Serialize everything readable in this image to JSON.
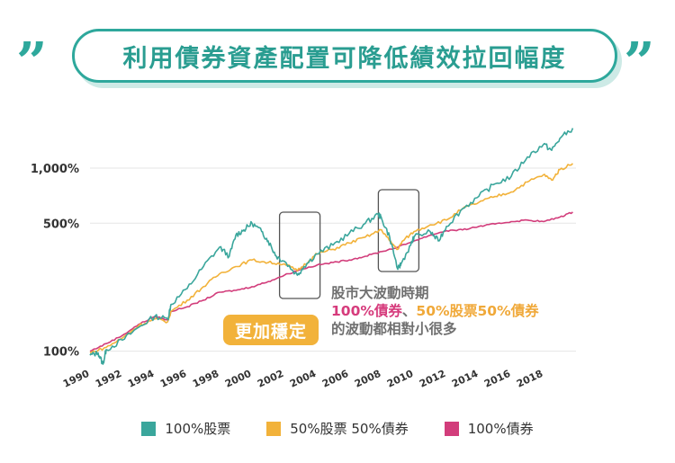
{
  "title": "利用債券資產配置可降低績效拉回幅度",
  "quote_glyph": "”",
  "annotation": {
    "badge": "更加穩定",
    "line1": "股市大波動時期",
    "line2_a": "100%債券",
    "line2_sep": "、",
    "line2_b": "50%股票50%債券",
    "line3": "的波動都相對小很多"
  },
  "colors": {
    "stock": "#3aa69c",
    "mix": "#f2b23a",
    "bond": "#d23d7b",
    "accent": "#2ea89c"
  },
  "chart_data": {
    "type": "line",
    "yscale": "log",
    "ylim": [
      90,
      1700
    ],
    "xlim": [
      1990,
      2020
    ],
    "ytick_values": [
      100,
      500,
      1000
    ],
    "ytick_labels": [
      "100%",
      "500%",
      "1,000%"
    ],
    "xtick_values": [
      1990,
      1992,
      1994,
      1996,
      1998,
      2000,
      2002,
      2004,
      2006,
      2008,
      2010,
      2012,
      2014,
      2016,
      2018
    ],
    "xtick_labels": [
      "1990",
      "1992",
      "1994",
      "1996",
      "1998",
      "2000",
      "2002",
      "2004",
      "2006",
      "2008",
      "2010",
      "2012",
      "2014",
      "2016",
      "2018"
    ],
    "highlight_ranges": [
      [
        2001.7,
        2004.2
      ],
      [
        2007.8,
        2010.3
      ]
    ],
    "legend_placement": "bottom",
    "series": [
      {
        "name": "100%股票",
        "key": "stock",
        "x": [
          1990,
          1990.5,
          1990.8,
          1991,
          1992,
          1993,
          1994,
          1994.8,
          1995,
          1996,
          1997,
          1998,
          1998.6,
          1999,
          1999.5,
          2000,
          2000.6,
          2001,
          2001.5,
          2002,
          2002.8,
          2003.2,
          2004,
          2005,
          2006,
          2007,
          2007.8,
          2008,
          2008.5,
          2009,
          2009.2,
          2009.8,
          2010,
          2011,
          2011.5,
          2012,
          2013,
          2014,
          2015,
          2016,
          2017,
          2018,
          2018.5,
          2019,
          2019.8
        ],
        "y": [
          95,
          98,
          85,
          102,
          115,
          135,
          155,
          150,
          180,
          220,
          290,
          370,
          330,
          430,
          460,
          500,
          450,
          400,
          330,
          310,
          260,
          290,
          340,
          380,
          440,
          500,
          560,
          530,
          420,
          280,
          300,
          380,
          420,
          450,
          400,
          480,
          600,
          700,
          820,
          900,
          1150,
          1350,
          1250,
          1450,
          1650
        ]
      },
      {
        "name": "50%股票 50%債券",
        "key": "mix",
        "x": [
          1990,
          1991,
          1992,
          1993,
          1994,
          1994.8,
          1995,
          1996,
          1997,
          1998,
          1999,
          2000,
          2001,
          2002,
          2002.8,
          2003.5,
          2004,
          2005,
          2006,
          2007,
          2008,
          2008.5,
          2009,
          2009.3,
          2010,
          2011,
          2012,
          2013,
          2014,
          2015,
          2016,
          2017,
          2018,
          2018.5,
          2019,
          2019.8
        ],
        "y": [
          98,
          105,
          118,
          138,
          150,
          145,
          165,
          190,
          225,
          265,
          290,
          315,
          305,
          300,
          275,
          310,
          340,
          360,
          390,
          420,
          460,
          400,
          360,
          400,
          450,
          490,
          520,
          600,
          650,
          700,
          740,
          840,
          920,
          860,
          980,
          1060
        ]
      },
      {
        "name": "100%債券",
        "key": "bond",
        "x": [
          1990,
          1991,
          1992,
          1993,
          1994,
          1994.8,
          1995,
          1996,
          1997,
          1998,
          1999,
          2000,
          2001,
          2002,
          2003,
          2004,
          2005,
          2006,
          2007,
          2008,
          2009,
          2010,
          2011,
          2012,
          2013,
          2014,
          2015,
          2016,
          2017,
          2018,
          2019,
          2019.8
        ],
        "y": [
          100,
          110,
          122,
          140,
          155,
          148,
          165,
          175,
          190,
          210,
          215,
          225,
          240,
          260,
          280,
          295,
          305,
          315,
          330,
          350,
          370,
          400,
          430,
          455,
          460,
          480,
          495,
          510,
          520,
          510,
          540,
          575
        ]
      }
    ]
  }
}
